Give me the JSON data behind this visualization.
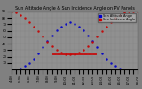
{
  "title": "Sun Altitude Angle & Sun Incidence Angle on PV Panels",
  "blue_label": "Sun Altitude Angle",
  "red_label": "Sun Incidence Angle",
  "bg_color": "#808080",
  "plot_bg_color": "#909090",
  "blue_color": "#0000cc",
  "red_color": "#cc0000",
  "ylim": [
    0,
    90
  ],
  "yticks": [
    10,
    20,
    30,
    40,
    50,
    60,
    70,
    80,
    90
  ],
  "blue_x": [
    0,
    1,
    2,
    3,
    4,
    5,
    6,
    7,
    8,
    9,
    10,
    11,
    12,
    13,
    14,
    15,
    16,
    17,
    18,
    19,
    20,
    21,
    22,
    23,
    24,
    25,
    26,
    27,
    28
  ],
  "blue_y": [
    0,
    0,
    2,
    5,
    10,
    17,
    25,
    34,
    44,
    53,
    61,
    67,
    71,
    73,
    71,
    67,
    61,
    53,
    44,
    34,
    25,
    17,
    10,
    5,
    2,
    0,
    0,
    0,
    0
  ],
  "red_x": [
    0,
    1,
    2,
    3,
    4,
    5,
    6,
    7,
    8,
    9,
    10,
    11,
    12,
    13,
    14,
    15,
    16,
    17,
    18,
    19,
    20,
    21,
    22,
    23,
    24,
    25,
    26,
    27,
    28
  ],
  "red_y": [
    90,
    88,
    85,
    80,
    74,
    67,
    59,
    51,
    43,
    36,
    30,
    26,
    24,
    23,
    24,
    26,
    30,
    36,
    43,
    51,
    59,
    67,
    74,
    80,
    85,
    88,
    90,
    90,
    90
  ],
  "hline_y": 24,
  "hline_x_start": 9,
  "hline_x_end": 19,
  "xlim": [
    0,
    28
  ],
  "legend_loc": "upper right",
  "grid_color": "#707070",
  "grid_linestyle": ":",
  "title_fontsize": 3.5,
  "legend_fontsize": 2.5,
  "tick_fontsize": 2.8,
  "marker": ".",
  "markersize": 1.5,
  "linewidth": 0,
  "hline_linewidth": 1.2,
  "xtick_labels": [
    "4:00",
    "",
    "5:00",
    "",
    "6:00",
    "",
    "7:00",
    "",
    "8:00",
    "",
    "9:00",
    "",
    "10:00",
    "",
    "11:00",
    "",
    "12:00",
    "",
    "13:00",
    "",
    "14:00",
    "",
    "15:00",
    "",
    "16:00",
    "",
    "17:00",
    "",
    "18:00"
  ]
}
